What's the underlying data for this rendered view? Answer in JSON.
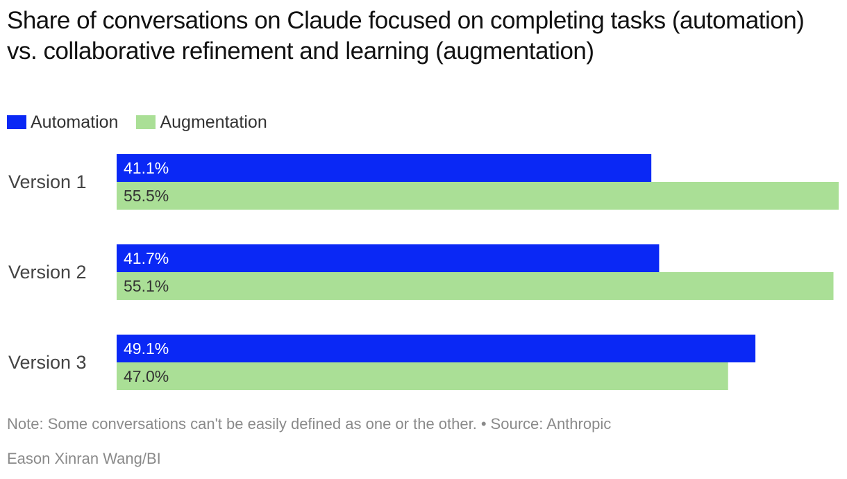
{
  "title": "Share of conversations on Claude focused on completing tasks (automation) vs. collaborative refinement and learning (augmentation)",
  "legend": [
    {
      "label": "Automation",
      "color": "#0a28f5"
    },
    {
      "label": "Augmentation",
      "color": "#aadf96"
    }
  ],
  "note": "Note: Some conversations can't be easily defined as one or the other.",
  "separator": "•",
  "source": "Source: Anthropic",
  "credit": "Eason Xinran Wang/BI",
  "chart_data": {
    "type": "bar",
    "orientation": "horizontal",
    "categories": [
      "Version 1",
      "Version 2",
      "Version 3"
    ],
    "series": [
      {
        "name": "Automation",
        "values": [
          41.1,
          41.7,
          49.1
        ],
        "labels": [
          "41.1%",
          "41.7%",
          "49.1%"
        ],
        "color": "#0a28f5",
        "label_color": "#ffffff"
      },
      {
        "name": "Augmentation",
        "values": [
          55.5,
          55.1,
          47.0
        ],
        "labels": [
          "55.5%",
          "55.1%",
          "47.0%"
        ],
        "color": "#aadf96",
        "label_color": "#333333"
      }
    ],
    "xlim": [
      0,
      55.5
    ],
    "grid": false,
    "legend_position": "top-left"
  }
}
